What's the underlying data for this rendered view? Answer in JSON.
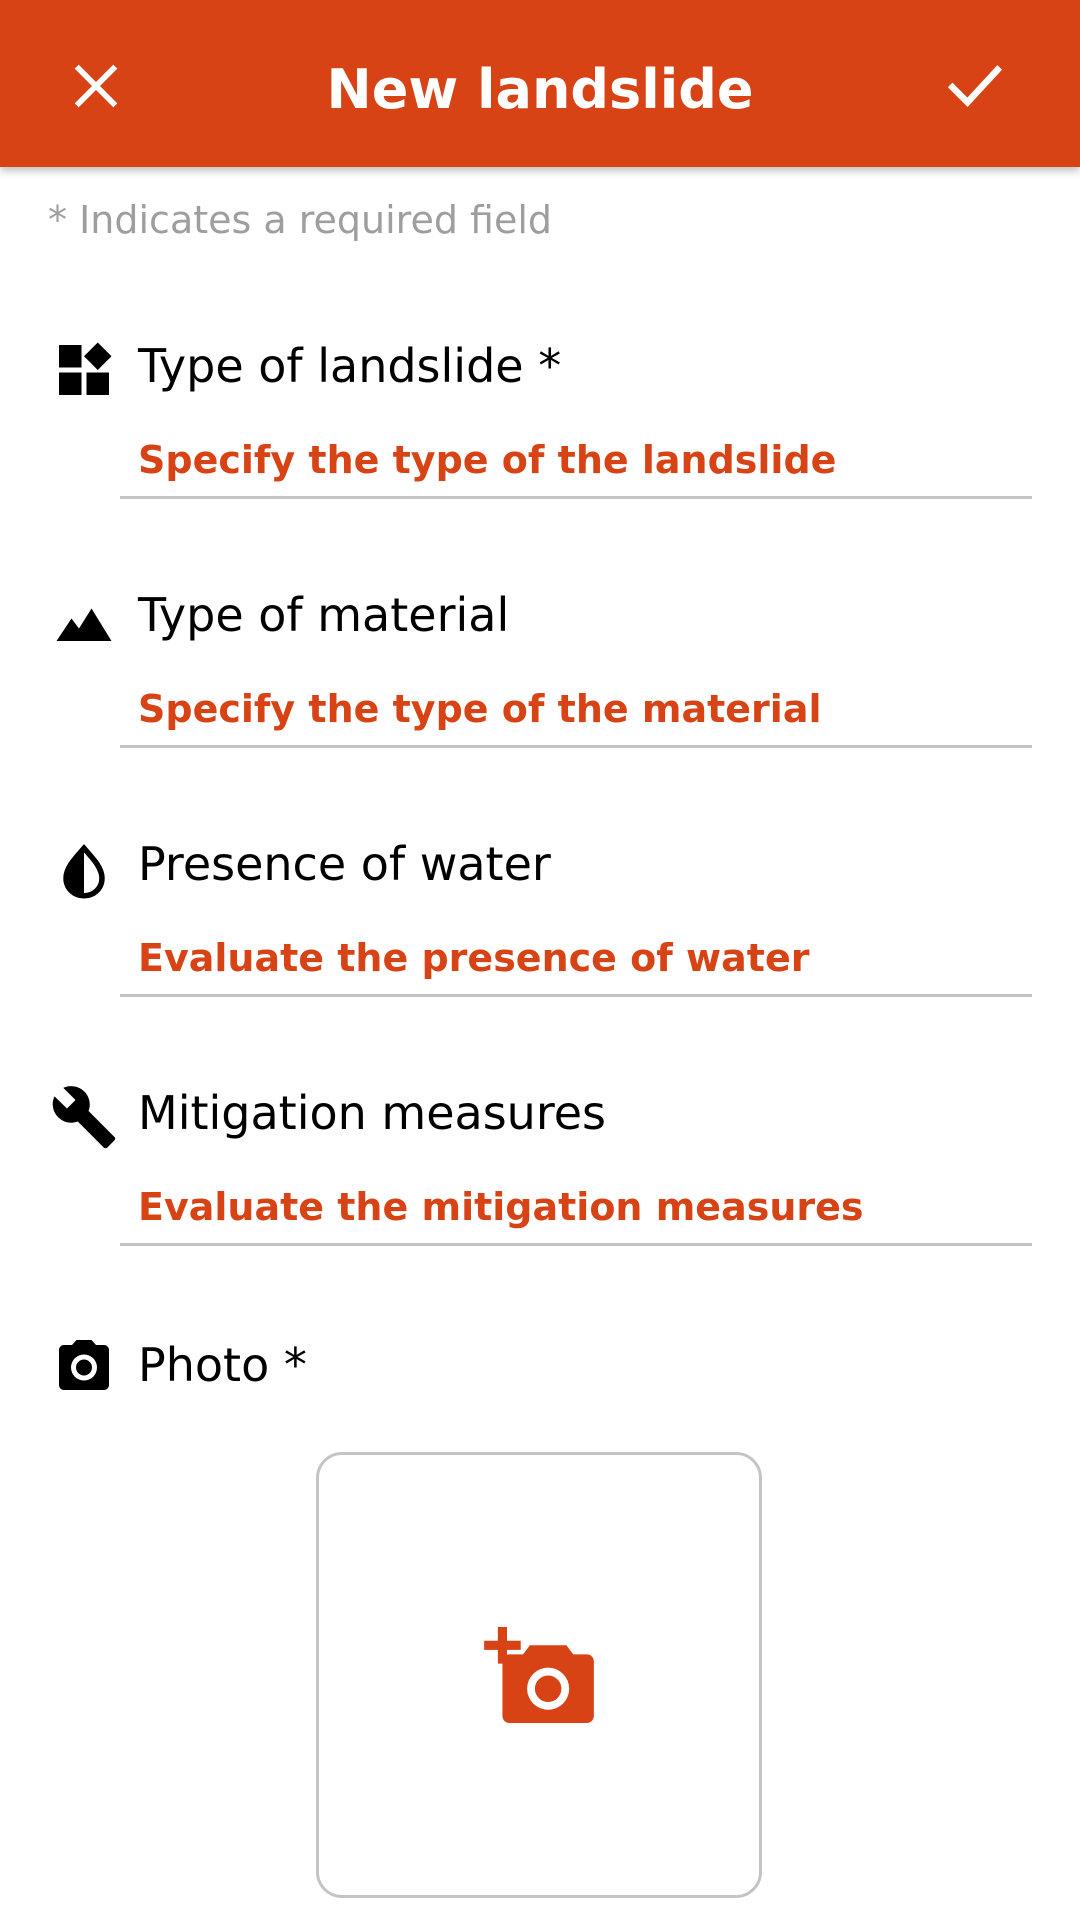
{
  "appbar": {
    "title": "New landslide",
    "close_icon": "close-icon",
    "confirm_icon": "check-icon",
    "color": "#d84315"
  },
  "required_note": "* Indicates a required field",
  "fields": [
    {
      "label": "Type of landslide *",
      "value": "Specify the type of the landslide",
      "icon": "widgets-icon"
    },
    {
      "label": "Type of material",
      "value": "Specify the type of the material",
      "icon": "terrain-icon"
    },
    {
      "label": "Presence of water",
      "value": "Evaluate the presence of water",
      "icon": "water-drop-icon"
    },
    {
      "label": "Mitigation measures",
      "value": "Evaluate the mitigation measures",
      "icon": "wrench-icon"
    }
  ],
  "photo": {
    "label": "Photo *",
    "icon": "camera-icon",
    "add_icon": "add-photo-icon"
  },
  "colors": {
    "accent": "#d84315",
    "hint": "#9e9e9e",
    "divider": "#c4c4c4"
  }
}
